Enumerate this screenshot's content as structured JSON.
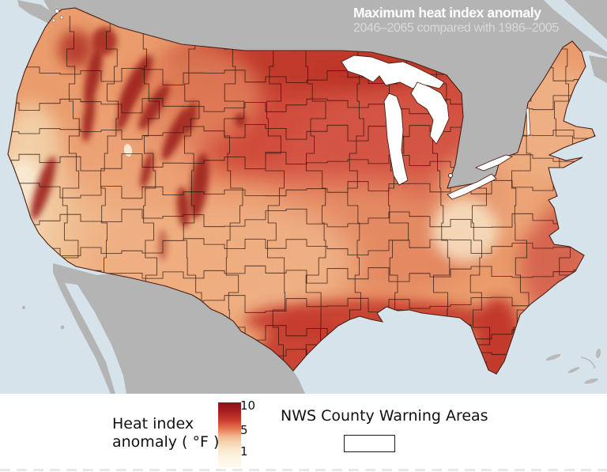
{
  "header": {
    "title": "Maximum heat index anomaly",
    "subtitle": "2046–2065 compared with 1986–2005"
  },
  "legend": {
    "label_line1": "Heat index",
    "label_line2": "anomaly ( °F )",
    "ticks": [
      "10",
      "5",
      "1"
    ],
    "nws_label": "NWS County Warning Areas"
  },
  "palette": {
    "ocean": "#d6e3ea",
    "foreign_land": "#b4b4b4",
    "lakes": "#ffffff",
    "anomaly_low": "#fef9ef",
    "anomaly_mid": "#e57350",
    "anomaly_high": "#8b1118",
    "boundary_lines": "#23100c",
    "title_text": "#ffffff",
    "subtitle_text": "#d9d9d9"
  },
  "chart_data": {
    "type": "heatmap",
    "title": "Maximum heat index anomaly",
    "subtitle": "2046–2065 compared with 1986–2005",
    "colorbar": {
      "label": "Heat index anomaly ( °F )",
      "ticks": [
        10,
        5,
        1
      ],
      "min": 1,
      "max": 10,
      "low_color": "#fef9ef",
      "high_color": "#8b1118",
      "orientation": "vertical"
    },
    "overlay_layer": "NWS County Warning Areas",
    "legend_position": "bottom"
  }
}
